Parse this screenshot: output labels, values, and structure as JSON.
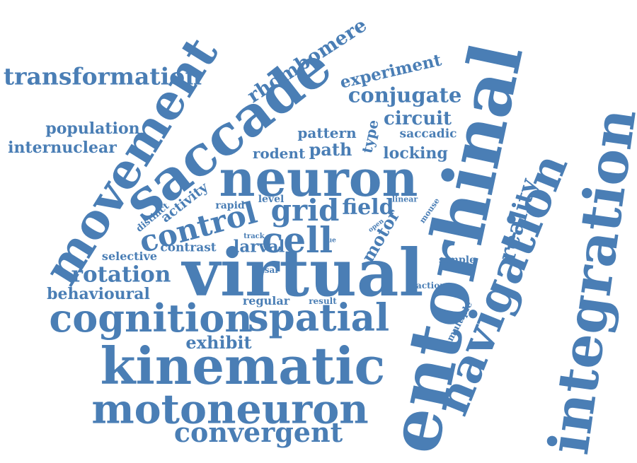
{
  "color": "#4a7eb5",
  "words": [
    {
      "id": "transformation",
      "text": "transformation"
    },
    {
      "id": "population",
      "text": "population"
    },
    {
      "id": "internuclear",
      "text": "internuclear"
    },
    {
      "id": "movement",
      "text": "movement"
    },
    {
      "id": "saccade",
      "text": "saccade"
    },
    {
      "id": "rhombomere",
      "text": "rhombomere"
    },
    {
      "id": "experiment",
      "text": "experiment"
    },
    {
      "id": "conjugate",
      "text": "conjugate"
    },
    {
      "id": "circuit",
      "text": "circuit"
    },
    {
      "id": "pattern",
      "text": "pattern"
    },
    {
      "id": "type",
      "text": "type"
    },
    {
      "id": "saccadic",
      "text": "saccadic"
    },
    {
      "id": "path",
      "text": "path"
    },
    {
      "id": "rodent",
      "text": "rodent"
    },
    {
      "id": "locking",
      "text": "locking"
    },
    {
      "id": "neuron",
      "text": "neuron"
    },
    {
      "id": "entorhinal",
      "text": "entorhinal"
    },
    {
      "id": "integration",
      "text": "integration"
    },
    {
      "id": "navigation",
      "text": "navigation"
    },
    {
      "id": "reality",
      "text": "reality"
    },
    {
      "id": "activity",
      "text": "activity"
    },
    {
      "id": "distinct",
      "text": "distinct"
    },
    {
      "id": "rapid",
      "text": "rapid"
    },
    {
      "id": "level",
      "text": "level"
    },
    {
      "id": "grid",
      "text": "grid"
    },
    {
      "id": "field",
      "text": "field"
    },
    {
      "id": "linear",
      "text": "linear"
    },
    {
      "id": "mouse",
      "text": "mouse"
    },
    {
      "id": "open",
      "text": "open"
    },
    {
      "id": "control",
      "text": "control"
    },
    {
      "id": "cell",
      "text": "cell"
    },
    {
      "id": "track",
      "text": "track"
    },
    {
      "id": "motor",
      "text": "motor"
    },
    {
      "id": "cue",
      "text": "cue"
    },
    {
      "id": "selective",
      "text": "selective"
    },
    {
      "id": "contrast",
      "text": "contrast"
    },
    {
      "id": "larval",
      "text": "larval"
    },
    {
      "id": "simple",
      "text": "simple"
    },
    {
      "id": "rotation",
      "text": "rotation"
    },
    {
      "id": "nasal",
      "text": "nasal"
    },
    {
      "id": "virtual",
      "text": "virtual"
    },
    {
      "id": "behavioural",
      "text": "behavioural"
    },
    {
      "id": "action",
      "text": "action"
    },
    {
      "id": "regular",
      "text": "regular"
    },
    {
      "id": "result",
      "text": "result"
    },
    {
      "id": "multiple",
      "text": "multiple"
    },
    {
      "id": "cognition",
      "text": "cognition"
    },
    {
      "id": "spatial",
      "text": "spatial"
    },
    {
      "id": "exhibit",
      "text": "exhibit"
    },
    {
      "id": "kinematic",
      "text": "kinematic"
    },
    {
      "id": "motoneuron",
      "text": "motoneuron"
    },
    {
      "id": "convergent",
      "text": "convergent"
    }
  ]
}
